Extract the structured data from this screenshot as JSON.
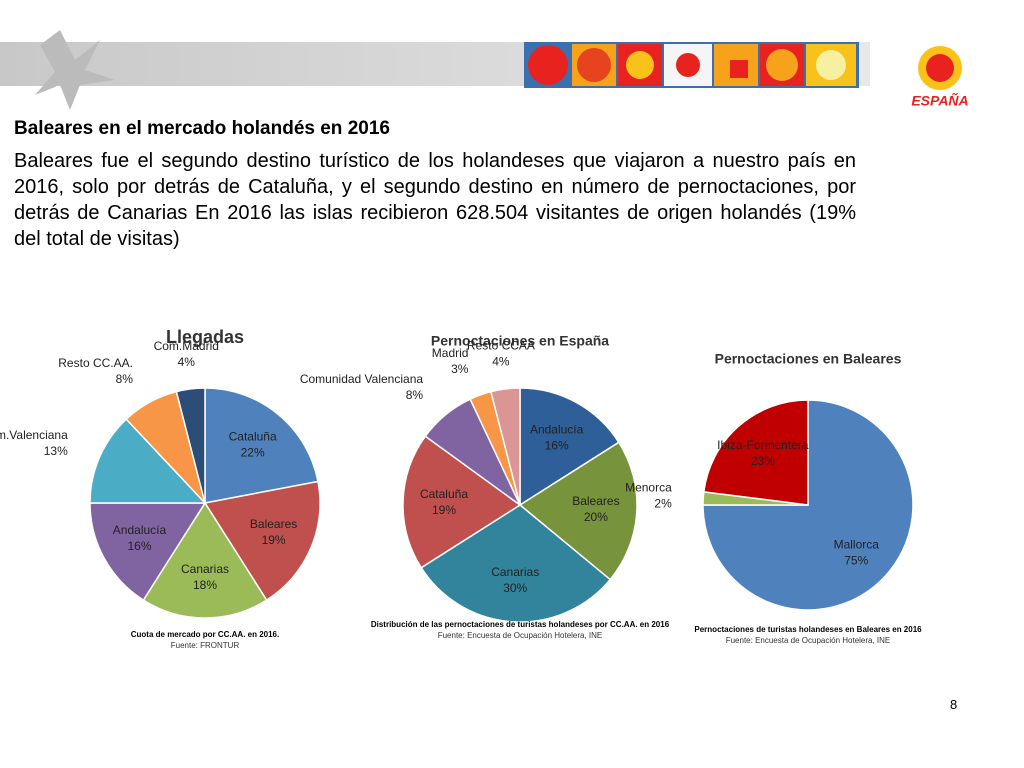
{
  "logo_text": "ESPAÑA",
  "title": "Baleares en el mercado holandés en 2016",
  "paragraph": "Baleares fue el segundo destino turístico de los holandeses que viajaron a nuestro país en 2016, solo por detrás de Cataluña, y el segundo  destino en número de pernoctaciones, por detrás de Canarias  En 2016 las islas recibieron 628.504 visitantes de origen holandés (19% del total de visitas)",
  "page_number": "8",
  "chart_data": [
    {
      "type": "pie",
      "title": "Llegadas",
      "categories": [
        "Cataluña",
        "Baleares",
        "Canarias",
        "Andalucía",
        "Com.Valenciana",
        "Resto CC.AA.",
        "Com.Madrid"
      ],
      "values": [
        22,
        19,
        18,
        16,
        13,
        8,
        4
      ],
      "value_labels": [
        "22%",
        "19%",
        "18%",
        "16%",
        "13%",
        "8%",
        "4%"
      ],
      "colors": [
        "#4f81bd",
        "#c0504d",
        "#9bbb59",
        "#8064a2",
        "#4bacc6",
        "#f79646",
        "#2c4d75"
      ],
      "caption": "Cuota de mercado por CC.AA. en 2016.",
      "source": "Fuente: FRONTUR"
    },
    {
      "type": "pie",
      "title": "Pernoctaciones en España",
      "categories": [
        "Andalucía",
        "Baleares",
        "Canarias",
        "Cataluña",
        "Comunidad Valenciana",
        "Madrid",
        "Resto CCAA"
      ],
      "values": [
        16,
        20,
        30,
        19,
        8,
        3,
        4
      ],
      "value_labels": [
        "16%",
        "20%",
        "30%",
        "19%",
        "8%",
        "3%",
        "4%"
      ],
      "colors": [
        "#2f5f98",
        "#77933c",
        "#31849b",
        "#c0504d",
        "#8064a2",
        "#f79646",
        "#d99694"
      ],
      "caption": "Distribución de las pernoctaciones de turistas holandeses por CC.AA. en 2016",
      "source": "Fuente: Encuesta de Ocupación Hotelera, INE"
    },
    {
      "type": "pie",
      "title": "Pernoctaciones en Baleares",
      "categories": [
        "Mallorca",
        "Menorca",
        "Ibiza-Formentera"
      ],
      "values": [
        75,
        2,
        23
      ],
      "value_labels": [
        "75%",
        "2%",
        "23%"
      ],
      "colors": [
        "#4f81bd",
        "#9bbb59",
        "#c00000"
      ],
      "caption": "Pernoctaciones de turistas holandeses en Baleares en 2016",
      "source": "Fuente: Encuesta de Ocupación Hotelera, INE"
    }
  ]
}
